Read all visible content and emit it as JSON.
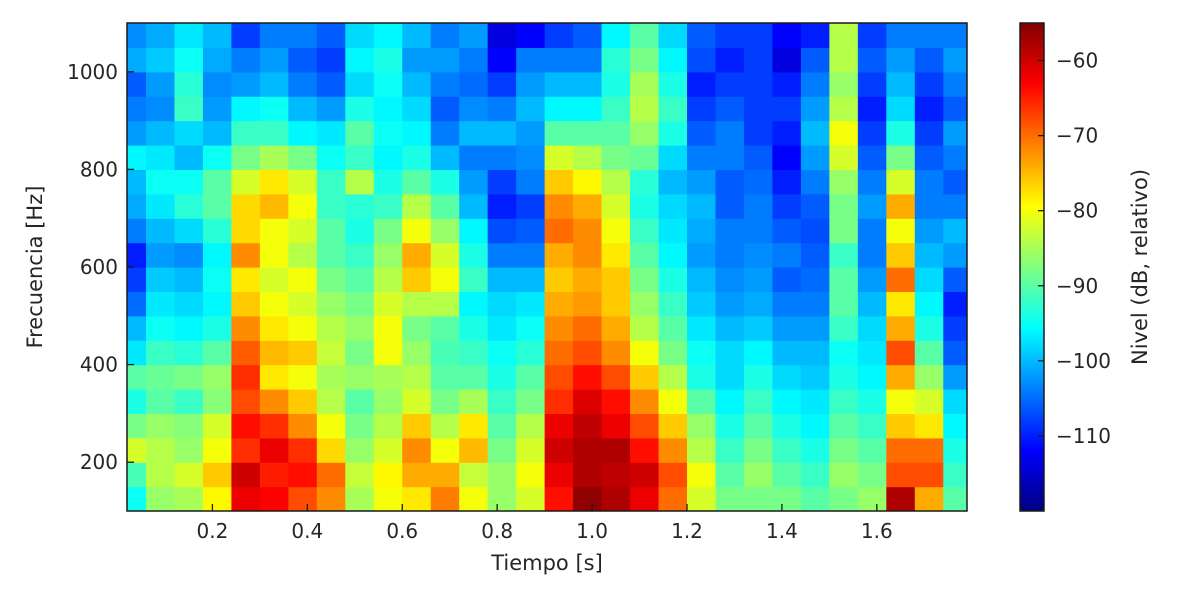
{
  "chart_data": {
    "type": "heatmap",
    "subtype": "spectrogram",
    "title": "",
    "xlabel": "Tiempo [s]",
    "ylabel": "Frecuencia [Hz]",
    "colorbar_label": "Nivel (dB, relativo)",
    "colormap": "jet",
    "xlim": [
      0.02,
      1.79
    ],
    "ylim": [
      100,
      1100
    ],
    "clim": [
      -120,
      -55
    ],
    "x_ticks": [
      0.2,
      0.4,
      0.6,
      0.8,
      1.0,
      1.2,
      1.4,
      1.6
    ],
    "x_tick_labels": [
      "0.2",
      "0.4",
      "0.6",
      "0.8",
      "1.0",
      "1.2",
      "1.4",
      "1.6"
    ],
    "y_ticks": [
      200,
      400,
      600,
      800,
      1000
    ],
    "y_tick_labels": [
      "200",
      "400",
      "600",
      "800",
      "1000"
    ],
    "colorbar_ticks": [
      -60,
      -70,
      -80,
      -90,
      -100,
      -110
    ],
    "colorbar_tick_labels": [
      "−60",
      "−70",
      "−80",
      "−90",
      "−100",
      "−110"
    ],
    "grid": false,
    "time_bins": [
      0.03,
      0.09,
      0.15,
      0.21,
      0.27,
      0.33,
      0.39,
      0.45,
      0.51,
      0.57,
      0.63,
      0.69,
      0.75,
      0.81,
      0.87,
      0.93,
      0.99,
      1.05,
      1.11,
      1.17,
      1.23,
      1.29,
      1.35,
      1.41,
      1.47,
      1.53,
      1.59,
      1.65,
      1.71,
      1.77
    ],
    "freq_bins": [
      125,
      175,
      225,
      275,
      325,
      375,
      425,
      475,
      525,
      575,
      625,
      675,
      725,
      775,
      825,
      875,
      925,
      975,
      1025,
      1075
    ],
    "level_db": [
      [
        -95,
        -91,
        -82,
        -88,
        -94,
        -90,
        -97,
        -100,
        -105,
        -108,
        -110,
        -104,
        -101,
        -100,
        -96,
        -102,
        -104,
        -106,
        -101,
        -103
      ],
      [
        -86,
        -84,
        -84,
        -86,
        -90,
        -89,
        -92,
        -95,
        -97,
        -99,
        -102,
        -100,
        -97,
        -95,
        -97,
        -100,
        -103,
        -102,
        -99,
        -101
      ],
      [
        -85,
        -82,
        -86,
        -87,
        -92,
        -88,
        -93,
        -96,
        -98,
        -100,
        -103,
        -98,
        -93,
        -95,
        -100,
        -98,
        -92,
        -93,
        -95,
        -97
      ],
      [
        -79,
        -76,
        -80,
        -82,
        -87,
        -86,
        -90,
        -94,
        -96,
        -95,
        -96,
        -93,
        -90,
        -90,
        -95,
        -100,
        -102,
        -103,
        -101,
        -100
      ],
      [
        -62,
        -60,
        -66,
        -64,
        -68,
        -66,
        -69,
        -72,
        -76,
        -78,
        -72,
        -77,
        -77,
        -82,
        -88,
        -92,
        -96,
        -102,
        -104,
        -108
      ],
      [
        -63,
        -65,
        -62,
        -66,
        -72,
        -78,
        -75,
        -78,
        -80,
        -82,
        -80,
        -80,
        -75,
        -78,
        -85,
        -92,
        -95,
        -100,
        -102,
        -104
      ],
      [
        -68,
        -64,
        -66,
        -72,
        -76,
        -80,
        -76,
        -80,
        -82,
        -80,
        -84,
        -82,
        -80,
        -82,
        -88,
        -96,
        -100,
        -104,
        -106,
        -104
      ],
      [
        -72,
        -70,
        -77,
        -80,
        -84,
        -85,
        -83,
        -84,
        -86,
        -88,
        -90,
        -90,
        -92,
        -92,
        -95,
        -97,
        -102,
        -106,
        -108,
        -106
      ],
      [
        -85,
        -83,
        -86,
        -88,
        -90,
        -86,
        -88,
        -86,
        -88,
        -90,
        -92,
        -94,
        -93,
        -84,
        -92,
        -90,
        -94,
        -98,
        -96,
        -98
      ],
      [
        -80,
        -79,
        -82,
        -84,
        -86,
        -85,
        -80,
        -80,
        -82,
        -84,
        -86,
        -88,
        -92,
        -94,
        -96,
        -95,
        -96,
        -95,
        -94,
        -96
      ],
      [
        -78,
        -74,
        -72,
        -76,
        -82,
        -84,
        -86,
        -88,
        -84,
        -76,
        -74,
        -80,
        -84,
        -90,
        -94,
        -96,
        -98,
        -100,
        -102,
        -100
      ],
      [
        -71,
        -74,
        -80,
        -84,
        -88,
        -90,
        -91,
        -90,
        -84,
        -80,
        -82,
        -86,
        -90,
        -94,
        -100,
        -104,
        -106,
        -104,
        -102,
        -104
      ],
      [
        -80,
        -83,
        -75,
        -78,
        -85,
        -90,
        -92,
        -94,
        -96,
        -92,
        -94,
        -96,
        -100,
        -102,
        -104,
        -100,
        -103,
        -105,
        -104,
        -102
      ],
      [
        -86,
        -86,
        -88,
        -90,
        -92,
        -94,
        -95,
        -97,
        -98,
        -100,
        -104,
        -107,
        -110,
        -108,
        -104,
        -100,
        -104,
        -108,
        -112,
        -114
      ],
      [
        -82,
        -80,
        -82,
        -84,
        -88,
        -90,
        -93,
        -95,
        -97,
        -100,
        -104,
        -106,
        -108,
        -104,
        -103,
        -102,
        -100,
        -102,
        -104,
        -112
      ],
      [
        -64,
        -62,
        -60,
        -62,
        -66,
        -68,
        -70,
        -72,
        -74,
        -76,
        -74,
        -70,
        -72,
        -76,
        -82,
        -90,
        -96,
        -100,
        -104,
        -108
      ],
      [
        -56,
        -58,
        -58,
        -59,
        -61,
        -64,
        -68,
        -70,
        -73,
        -74,
        -72,
        -72,
        -74,
        -79,
        -84,
        -90,
        -96,
        -100,
        -104,
        -106
      ],
      [
        -58,
        -59,
        -58,
        -62,
        -64,
        -68,
        -72,
        -74,
        -76,
        -76,
        -78,
        -80,
        -82,
        -84,
        -88,
        -90,
        -92,
        -94,
        -93,
        -96
      ],
      [
        -62,
        -60,
        -64,
        -68,
        -72,
        -76,
        -80,
        -84,
        -86,
        -88,
        -90,
        -92,
        -94,
        -93,
        -89,
        -86,
        -84,
        -85,
        -88,
        -90
      ],
      [
        -70,
        -68,
        -72,
        -76,
        -80,
        -84,
        -88,
        -90,
        -92,
        -94,
        -96,
        -97,
        -98,
        -100,
        -98,
        -94,
        -92,
        -94,
        -96,
        -98
      ],
      [
        -82,
        -80,
        -84,
        -86,
        -90,
        -94,
        -95,
        -97,
        -99,
        -100,
        -102,
        -101,
        -100,
        -102,
        -104,
        -106,
        -108,
        -110,
        -107,
        -106
      ],
      [
        -88,
        -90,
        -92,
        -94,
        -96,
        -98,
        -98,
        -100,
        -102,
        -103,
        -104,
        -104,
        -106,
        -106,
        -104,
        -104,
        -106,
        -108,
        -110,
        -108
      ],
      [
        -88,
        -86,
        -88,
        -90,
        -92,
        -94,
        -96,
        -99,
        -101,
        -102,
        -103,
        -104,
        -104,
        -105,
        -106,
        -108,
        -108,
        -108,
        -108,
        -108
      ],
      [
        -88,
        -90,
        -92,
        -94,
        -96,
        -98,
        -100,
        -102,
        -104,
        -106,
        -104,
        -106,
        -108,
        -110,
        -112,
        -110,
        -108,
        -110,
        -114,
        -112
      ],
      [
        -90,
        -92,
        -94,
        -96,
        -97,
        -99,
        -100,
        -102,
        -104,
        -105,
        -106,
        -107,
        -106,
        -104,
        -102,
        -100,
        -102,
        -104,
        -106,
        -110
      ],
      [
        -88,
        -86,
        -88,
        -90,
        -92,
        -94,
        -95,
        -92,
        -90,
        -90,
        -92,
        -88,
        -88,
        -86,
        -82,
        -80,
        -84,
        -86,
        -84,
        -84
      ],
      [
        -86,
        -88,
        -90,
        -92,
        -94,
        -96,
        -97,
        -98,
        -100,
        -102,
        -104,
        -104,
        -102,
        -104,
        -106,
        -108,
        -110,
        -108,
        -106,
        -108
      ],
      [
        -58,
        -68,
        -70,
        -76,
        -80,
        -74,
        -68,
        -74,
        -78,
        -70,
        -76,
        -80,
        -74,
        -82,
        -88,
        -94,
        -98,
        -100,
        -102,
        -104
      ],
      [
        -74,
        -68,
        -70,
        -78,
        -82,
        -86,
        -90,
        -94,
        -96,
        -98,
        -100,
        -102,
        -104,
        -104,
        -106,
        -108,
        -110,
        -108,
        -106,
        -104
      ],
      [
        -90,
        -92,
        -94,
        -96,
        -98,
        -102,
        -106,
        -108,
        -110,
        -106,
        -102,
        -100,
        -104,
        -106,
        -104,
        -102,
        -106,
        -104,
        -102,
        -104
      ]
    ]
  }
}
